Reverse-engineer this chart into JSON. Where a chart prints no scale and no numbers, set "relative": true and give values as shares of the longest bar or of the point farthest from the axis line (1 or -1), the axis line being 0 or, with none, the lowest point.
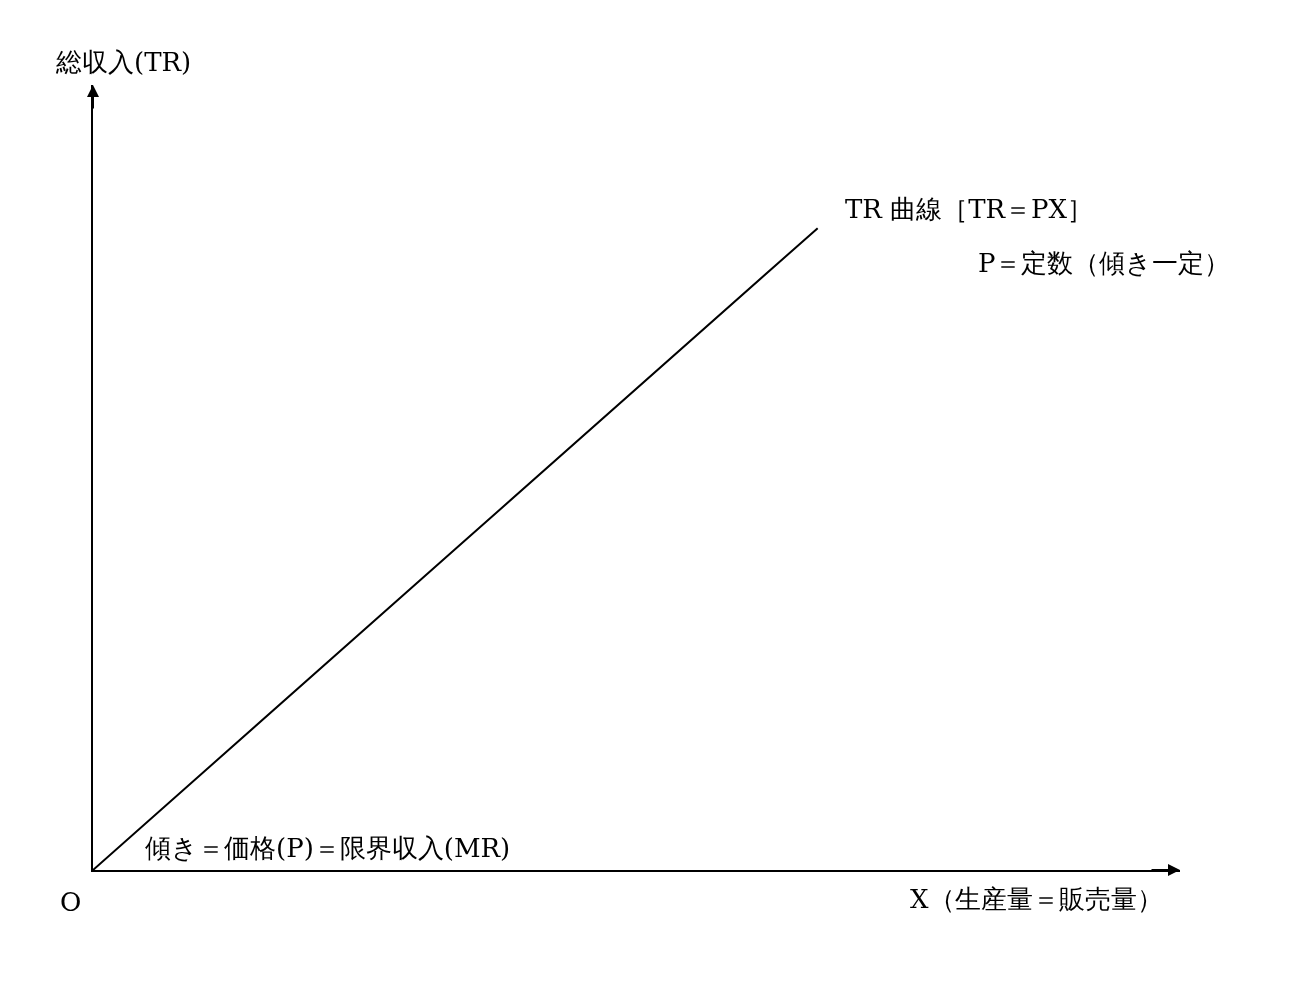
{
  "chart_data": {
    "type": "line",
    "relative": true,
    "xlabel": "X（生産量＝販売量）",
    "categories": [
      null,
      null,
      null,
      null
    ],
    "series": [
      {
        "color": "#000000",
        "values": [
          0,
          0.5,
          1,
          null
        ]
      }
    ],
    "marker": "none",
    "line_style": "solid",
    "legend": false,
    "annotations": [
      "総収入(TR)",
      "TR 曲線［TR＝PX］",
      "P＝定数（傾き一定）",
      "傾き＝価格(P)＝限界収入(MR)",
      "O"
    ]
  }
}
